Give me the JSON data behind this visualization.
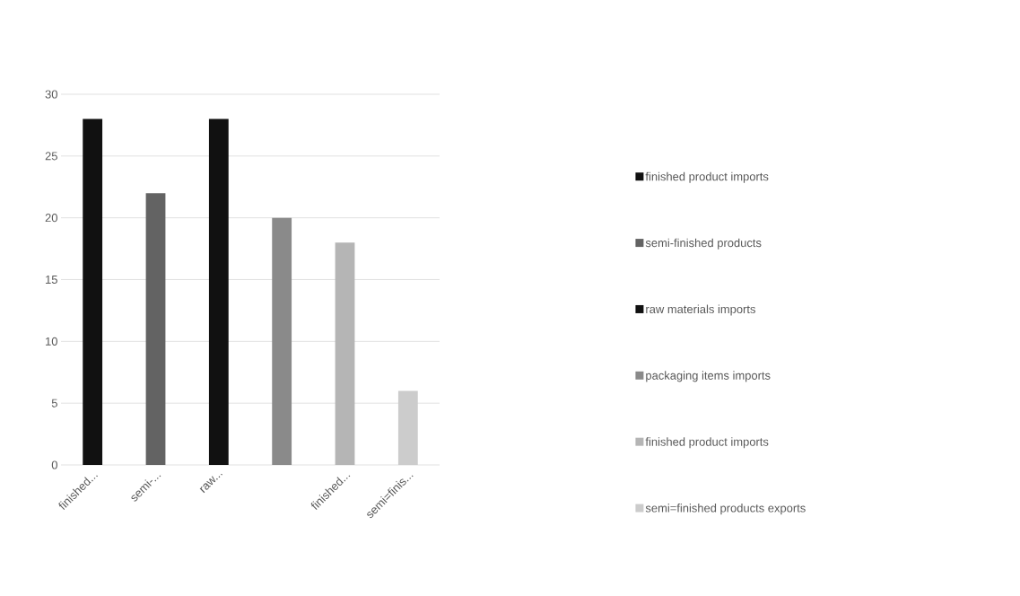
{
  "chart_data": {
    "type": "bar",
    "categories": [
      "finished...",
      "semi-...",
      "raw...",
      null,
      "finished...",
      "semi=finis..."
    ],
    "series": [
      {
        "name": "finished product imports",
        "color": "#111111",
        "values": [
          28,
          null,
          null,
          null,
          null,
          null
        ]
      },
      {
        "name": "semi-finished products",
        "color": "#636363",
        "values": [
          null,
          22,
          null,
          null,
          null,
          null
        ]
      },
      {
        "name": "raw materials imports",
        "color": "#111111",
        "values": [
          null,
          null,
          28,
          null,
          null,
          null
        ]
      },
      {
        "name": "packaging items imports",
        "color": "#8a8a8a",
        "values": [
          null,
          null,
          null,
          20,
          null,
          null
        ]
      },
      {
        "name": "finished product imports",
        "color": "#b5b5b5",
        "values": [
          null,
          null,
          null,
          null,
          18,
          null
        ]
      },
      {
        "name": "semi=finished products exports",
        "color": "#cccccc",
        "values": [
          null,
          null,
          null,
          null,
          null,
          6
        ]
      }
    ],
    "ylim": [
      0,
      30
    ],
    "yticks": [
      0,
      5,
      10,
      15,
      20,
      25,
      30
    ],
    "grid": "y",
    "legend": "right"
  }
}
